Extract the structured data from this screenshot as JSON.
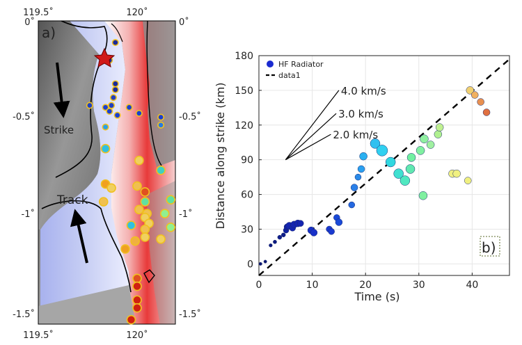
{
  "panel_a": {
    "label": "a)",
    "lon_ticks": [
      "119.5˚",
      "120˚"
    ],
    "lat_ticks": [
      "0˚",
      "-0.5˚",
      "-1˚",
      "-1.5˚"
    ],
    "strike_label": "Strike",
    "track_label": "Track",
    "epicenter_icon": "star-icon",
    "radiators": [
      {
        "lon": 119.89,
        "lat": -0.11,
        "color": "#1a2a9a"
      },
      {
        "lon": 119.86,
        "lat": -0.2,
        "color": "#1a2a9a"
      },
      {
        "lon": 119.89,
        "lat": -0.32,
        "color": "#1a2a9a"
      },
      {
        "lon": 119.89,
        "lat": -0.35,
        "color": "#1a2a9a"
      },
      {
        "lon": 119.88,
        "lat": -0.39,
        "color": "#2040c0"
      },
      {
        "lon": 119.87,
        "lat": -0.43,
        "color": "#2040c0"
      },
      {
        "lon": 119.76,
        "lat": -0.43,
        "color": "#2040c0"
      },
      {
        "lon": 119.84,
        "lat": -0.44,
        "color": "#1a3fd0"
      },
      {
        "lon": 119.86,
        "lat": -0.46,
        "color": "#1a3fd0"
      },
      {
        "lon": 119.9,
        "lat": -0.48,
        "color": "#1a3fd0"
      },
      {
        "lon": 119.96,
        "lat": -0.44,
        "color": "#1a3fd0"
      },
      {
        "lon": 120.01,
        "lat": -0.47,
        "color": "#1a3fd0"
      },
      {
        "lon": 120.12,
        "lat": -0.49,
        "color": "#1a3fd0"
      },
      {
        "lon": 120.12,
        "lat": -0.53,
        "color": "#2a7ae0"
      },
      {
        "lon": 119.84,
        "lat": -0.54,
        "color": "#2aa0e8"
      },
      {
        "lon": 119.84,
        "lat": -0.65,
        "color": "#30c0e0"
      },
      {
        "lon": 119.84,
        "lat": -0.83,
        "color": "#f0a020"
      },
      {
        "lon": 119.83,
        "lat": -0.92,
        "color": "#f0c050"
      },
      {
        "lon": 119.87,
        "lat": -0.85,
        "color": "#f0d060"
      },
      {
        "lon": 120.01,
        "lat": -0.71,
        "color": "#f0d060"
      },
      {
        "lon": 120.12,
        "lat": -0.76,
        "color": "#40d0c0"
      },
      {
        "lon": 120.0,
        "lat": -0.84,
        "color": "#f0c050"
      },
      {
        "lon": 120.04,
        "lat": -0.87,
        "color": "#e05020"
      },
      {
        "lon": 120.04,
        "lat": -0.92,
        "color": "#60e0a0"
      },
      {
        "lon": 120.17,
        "lat": -0.91,
        "color": "#60e0a0"
      },
      {
        "lon": 120.01,
        "lat": -0.96,
        "color": "#f0c050"
      },
      {
        "lon": 120.05,
        "lat": -0.98,
        "color": "#f0c050"
      },
      {
        "lon": 120.14,
        "lat": -0.98,
        "color": "#90f090"
      },
      {
        "lon": 120.04,
        "lat": -1.0,
        "color": "#f0d060"
      },
      {
        "lon": 120.06,
        "lat": -1.03,
        "color": "#f0d060"
      },
      {
        "lon": 119.97,
        "lat": -1.04,
        "color": "#30c0e0"
      },
      {
        "lon": 120.17,
        "lat": -1.05,
        "color": "#90f090"
      },
      {
        "lon": 120.04,
        "lat": -1.06,
        "color": "#f0c050"
      },
      {
        "lon": 120.04,
        "lat": -1.1,
        "color": "#f0d060"
      },
      {
        "lon": 119.99,
        "lat": -1.12,
        "color": "#f0b040"
      },
      {
        "lon": 120.12,
        "lat": -1.11,
        "color": "#f0d060"
      },
      {
        "lon": 119.94,
        "lat": -1.16,
        "color": "#f0a020"
      },
      {
        "lon": 120.0,
        "lat": -1.31,
        "color": "#e05020"
      },
      {
        "lon": 120.0,
        "lat": -1.35,
        "color": "#d02010"
      },
      {
        "lon": 120.0,
        "lat": -1.42,
        "color": "#d02010"
      },
      {
        "lon": 120.0,
        "lat": -1.46,
        "color": "#d02010"
      },
      {
        "lon": 119.97,
        "lat": -1.52,
        "color": "#d02010"
      }
    ]
  },
  "chart_data": {
    "type": "scatter",
    "panel_label": "b)",
    "xlabel": "Time (s)",
    "ylabel": "Distance along strike (km)",
    "xlim": [
      0,
      47
    ],
    "ylim": [
      -10,
      180
    ],
    "xticks": [
      0,
      10,
      20,
      30,
      40
    ],
    "yticks": [
      0,
      30,
      60,
      90,
      120,
      150,
      180
    ],
    "grid": true,
    "legend_position": "top-left",
    "legend": [
      {
        "label": "HF Radiator",
        "marker": "circle",
        "color": "#1a2ad0"
      },
      {
        "label": "data1",
        "marker": "dashed-line",
        "color": "#000000"
      }
    ],
    "reference_line": {
      "x": [
        0,
        47
      ],
      "y": [
        -10,
        177
      ]
    },
    "velocity_fan": {
      "origin": [
        5,
        90
      ],
      "lines": [
        {
          "label": "4.0 km/s",
          "end": [
            15,
            150
          ]
        },
        {
          "label": "3.0 km/s",
          "end": [
            14.5,
            130
          ]
        },
        {
          "label": "2.0 km/s",
          "end": [
            13.5,
            112
          ]
        }
      ]
    },
    "points": [
      {
        "t": 0.3,
        "d": 0,
        "s": 2.2,
        "c": "#0b1570"
      },
      {
        "t": 1.2,
        "d": 2,
        "s": 2.2,
        "c": "#0b1570"
      },
      {
        "t": 2.2,
        "d": 16,
        "s": 2.4,
        "c": "#0c1a80"
      },
      {
        "t": 3.0,
        "d": 19,
        "s": 2.6,
        "c": "#0c1a80"
      },
      {
        "t": 3.9,
        "d": 23,
        "s": 3,
        "c": "#101e8a"
      },
      {
        "t": 4.6,
        "d": 25,
        "s": 3,
        "c": "#101e8a"
      },
      {
        "t": 5.1,
        "d": 29,
        "s": 4,
        "c": "#1020a0"
      },
      {
        "t": 5.3,
        "d": 32,
        "s": 4.5,
        "c": "#1020a0"
      },
      {
        "t": 5.7,
        "d": 33,
        "s": 5,
        "c": "#1424b0"
      },
      {
        "t": 6.3,
        "d": 31,
        "s": 4.5,
        "c": "#1424b0"
      },
      {
        "t": 6.6,
        "d": 34,
        "s": 5,
        "c": "#1424b0"
      },
      {
        "t": 7.3,
        "d": 35,
        "s": 5,
        "c": "#1424b0"
      },
      {
        "t": 7.8,
        "d": 35,
        "s": 4.5,
        "c": "#1424b0"
      },
      {
        "t": 9.8,
        "d": 29,
        "s": 5,
        "c": "#1830c8"
      },
      {
        "t": 10.3,
        "d": 27,
        "s": 5,
        "c": "#1830c8"
      },
      {
        "t": 13.2,
        "d": 30,
        "s": 4.5,
        "c": "#1a3ad0"
      },
      {
        "t": 13.6,
        "d": 28,
        "s": 4.5,
        "c": "#1a3ad0"
      },
      {
        "t": 14.6,
        "d": 40,
        "s": 4.5,
        "c": "#1a4ad8"
      },
      {
        "t": 15.0,
        "d": 36,
        "s": 5,
        "c": "#1a4ad8"
      },
      {
        "t": 17.4,
        "d": 51,
        "s": 4.5,
        "c": "#2468e0"
      },
      {
        "t": 17.9,
        "d": 66,
        "s": 5,
        "c": "#2a80e8"
      },
      {
        "t": 18.6,
        "d": 75,
        "s": 4.5,
        "c": "#2a8ae8"
      },
      {
        "t": 19.2,
        "d": 82,
        "s": 5,
        "c": "#2aa0f0"
      },
      {
        "t": 19.6,
        "d": 93,
        "s": 5.5,
        "c": "#2ab0f0"
      },
      {
        "t": 21.8,
        "d": 104,
        "s": 7,
        "c": "#30c0f0"
      },
      {
        "t": 23.1,
        "d": 98,
        "s": 8,
        "c": "#30d0f0"
      },
      {
        "t": 24.7,
        "d": 88,
        "s": 7,
        "c": "#30d8e0"
      },
      {
        "t": 26.2,
        "d": 78,
        "s": 7,
        "c": "#40e0d0"
      },
      {
        "t": 27.4,
        "d": 72,
        "s": 7,
        "c": "#50e8c0"
      },
      {
        "t": 28.4,
        "d": 82,
        "s": 6.5,
        "c": "#60e8b0"
      },
      {
        "t": 28.6,
        "d": 92,
        "s": 6,
        "c": "#70f0a0"
      },
      {
        "t": 30.3,
        "d": 98,
        "s": 6,
        "c": "#80f0a0"
      },
      {
        "t": 30.8,
        "d": 59,
        "s": 6,
        "c": "#80f0a0"
      },
      {
        "t": 31.0,
        "d": 108,
        "s": 6,
        "c": "#90f0a0"
      },
      {
        "t": 32.2,
        "d": 103,
        "s": 5.5,
        "c": "#a0f0a0"
      },
      {
        "t": 33.6,
        "d": 112,
        "s": 5.5,
        "c": "#b0f090"
      },
      {
        "t": 33.9,
        "d": 118,
        "s": 5.5,
        "c": "#c0f090"
      },
      {
        "t": 36.3,
        "d": 78,
        "s": 5.5,
        "c": "#f0f080"
      },
      {
        "t": 37.1,
        "d": 78,
        "s": 5.5,
        "c": "#f0f080"
      },
      {
        "t": 39.2,
        "d": 72,
        "s": 5,
        "c": "#f0f080"
      },
      {
        "t": 39.6,
        "d": 150,
        "s": 5.5,
        "c": "#f0d070"
      },
      {
        "t": 40.5,
        "d": 146,
        "s": 5,
        "c": "#f0b060"
      },
      {
        "t": 41.6,
        "d": 140,
        "s": 5,
        "c": "#e89050"
      },
      {
        "t": 42.7,
        "d": 131,
        "s": 5,
        "c": "#e07040"
      }
    ]
  }
}
